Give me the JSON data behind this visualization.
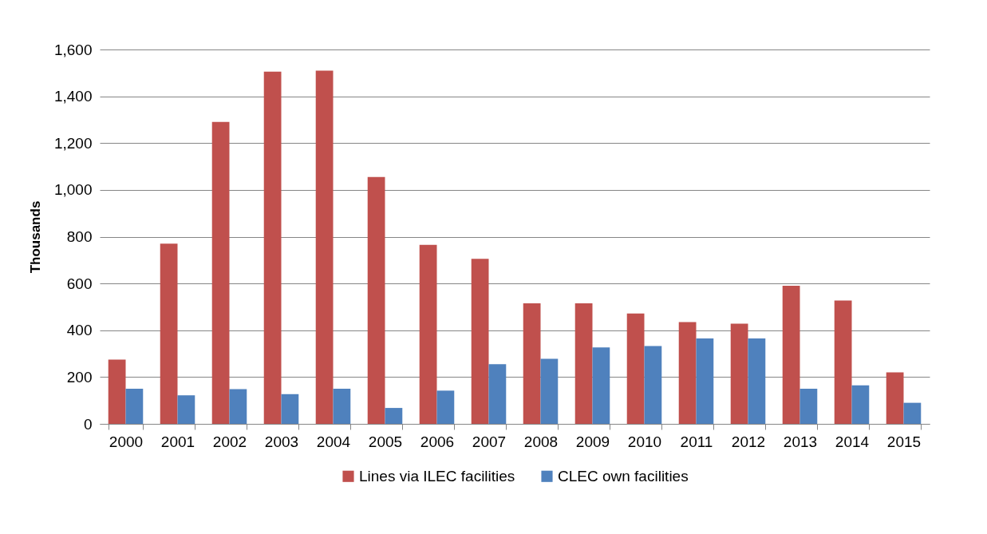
{
  "chart_data": {
    "type": "bar",
    "ylabel": "Thousands",
    "categories": [
      "2000",
      "2001",
      "2002",
      "2003",
      "2004",
      "2005",
      "2006",
      "2007",
      "2008",
      "2009",
      "2010",
      "2011",
      "2012",
      "2013",
      "2014",
      "2015"
    ],
    "series": [
      {
        "name": "Lines via ILEC facilities",
        "color": "#c0504d",
        "values": [
          275,
          770,
          1290,
          1505,
          1510,
          1055,
          765,
          705,
          515,
          515,
          472,
          435,
          428,
          590,
          527,
          220
        ]
      },
      {
        "name": "CLEC own facilities",
        "color": "#4f81bd",
        "values": [
          150,
          122,
          148,
          127,
          150,
          68,
          142,
          255,
          278,
          327,
          333,
          365,
          365,
          150,
          165,
          90
        ]
      }
    ],
    "ylim": [
      0,
      1600
    ],
    "yticks": [
      0,
      200,
      400,
      600,
      800,
      {
        "value": 1000,
        "label": "1,000"
      },
      {
        "value": 1200,
        "label": "1,200"
      },
      {
        "value": 1400,
        "label": "1,400"
      },
      {
        "value": 1600,
        "label": "1,600"
      }
    ],
    "grid": "y",
    "legend": "bottom"
  }
}
